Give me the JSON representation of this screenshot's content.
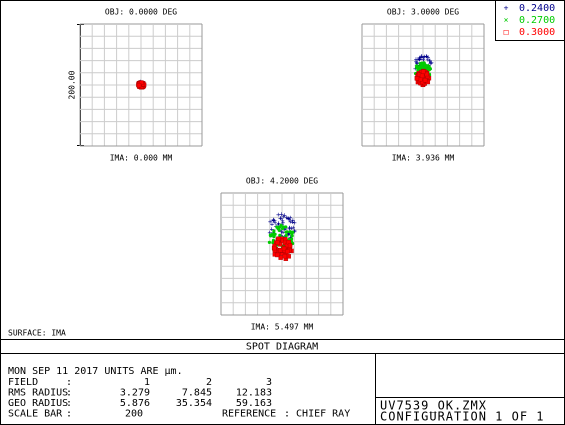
{
  "legend": [
    {
      "symbol": "+",
      "label": "0.2400",
      "color": "#00008b"
    },
    {
      "symbol": "×",
      "label": "0.2700",
      "color": "#00cc00"
    },
    {
      "symbol": "□",
      "label": "0.3000",
      "color": "#ff0000"
    }
  ],
  "plots": [
    {
      "title": "OBJ: 0.0000 DEG",
      "footer": "IMA: 0.000 MM"
    },
    {
      "title": "OBJ: 3.0000 DEG",
      "footer": "IMA: 3.936 MM"
    },
    {
      "title": "OBJ: 4.2000 DEG",
      "footer": "IMA: 5.497 MM"
    }
  ],
  "scale_label": "200.00",
  "surface": "SURFACE: IMA",
  "banner": "SPOT DIAGRAM",
  "info": {
    "date_line": "MON SEP 11 2017   UNITS ARE µm.",
    "rows": [
      [
        "FIELD",
        ":",
        "1",
        "2",
        "3"
      ],
      [
        "RMS RADIUS",
        ":",
        "3.279",
        "7.845",
        "12.183"
      ],
      [
        "GEO RADIUS",
        ":",
        "5.876",
        "35.354",
        "59.163"
      ]
    ],
    "scale_row": [
      "SCALE BAR",
      ":",
      "200",
      "REFERENCE",
      ": CHIEF RAY"
    ]
  },
  "file": "UV7539_OK.ZMX",
  "config": "CONFIGURATION 1 OF 1"
}
